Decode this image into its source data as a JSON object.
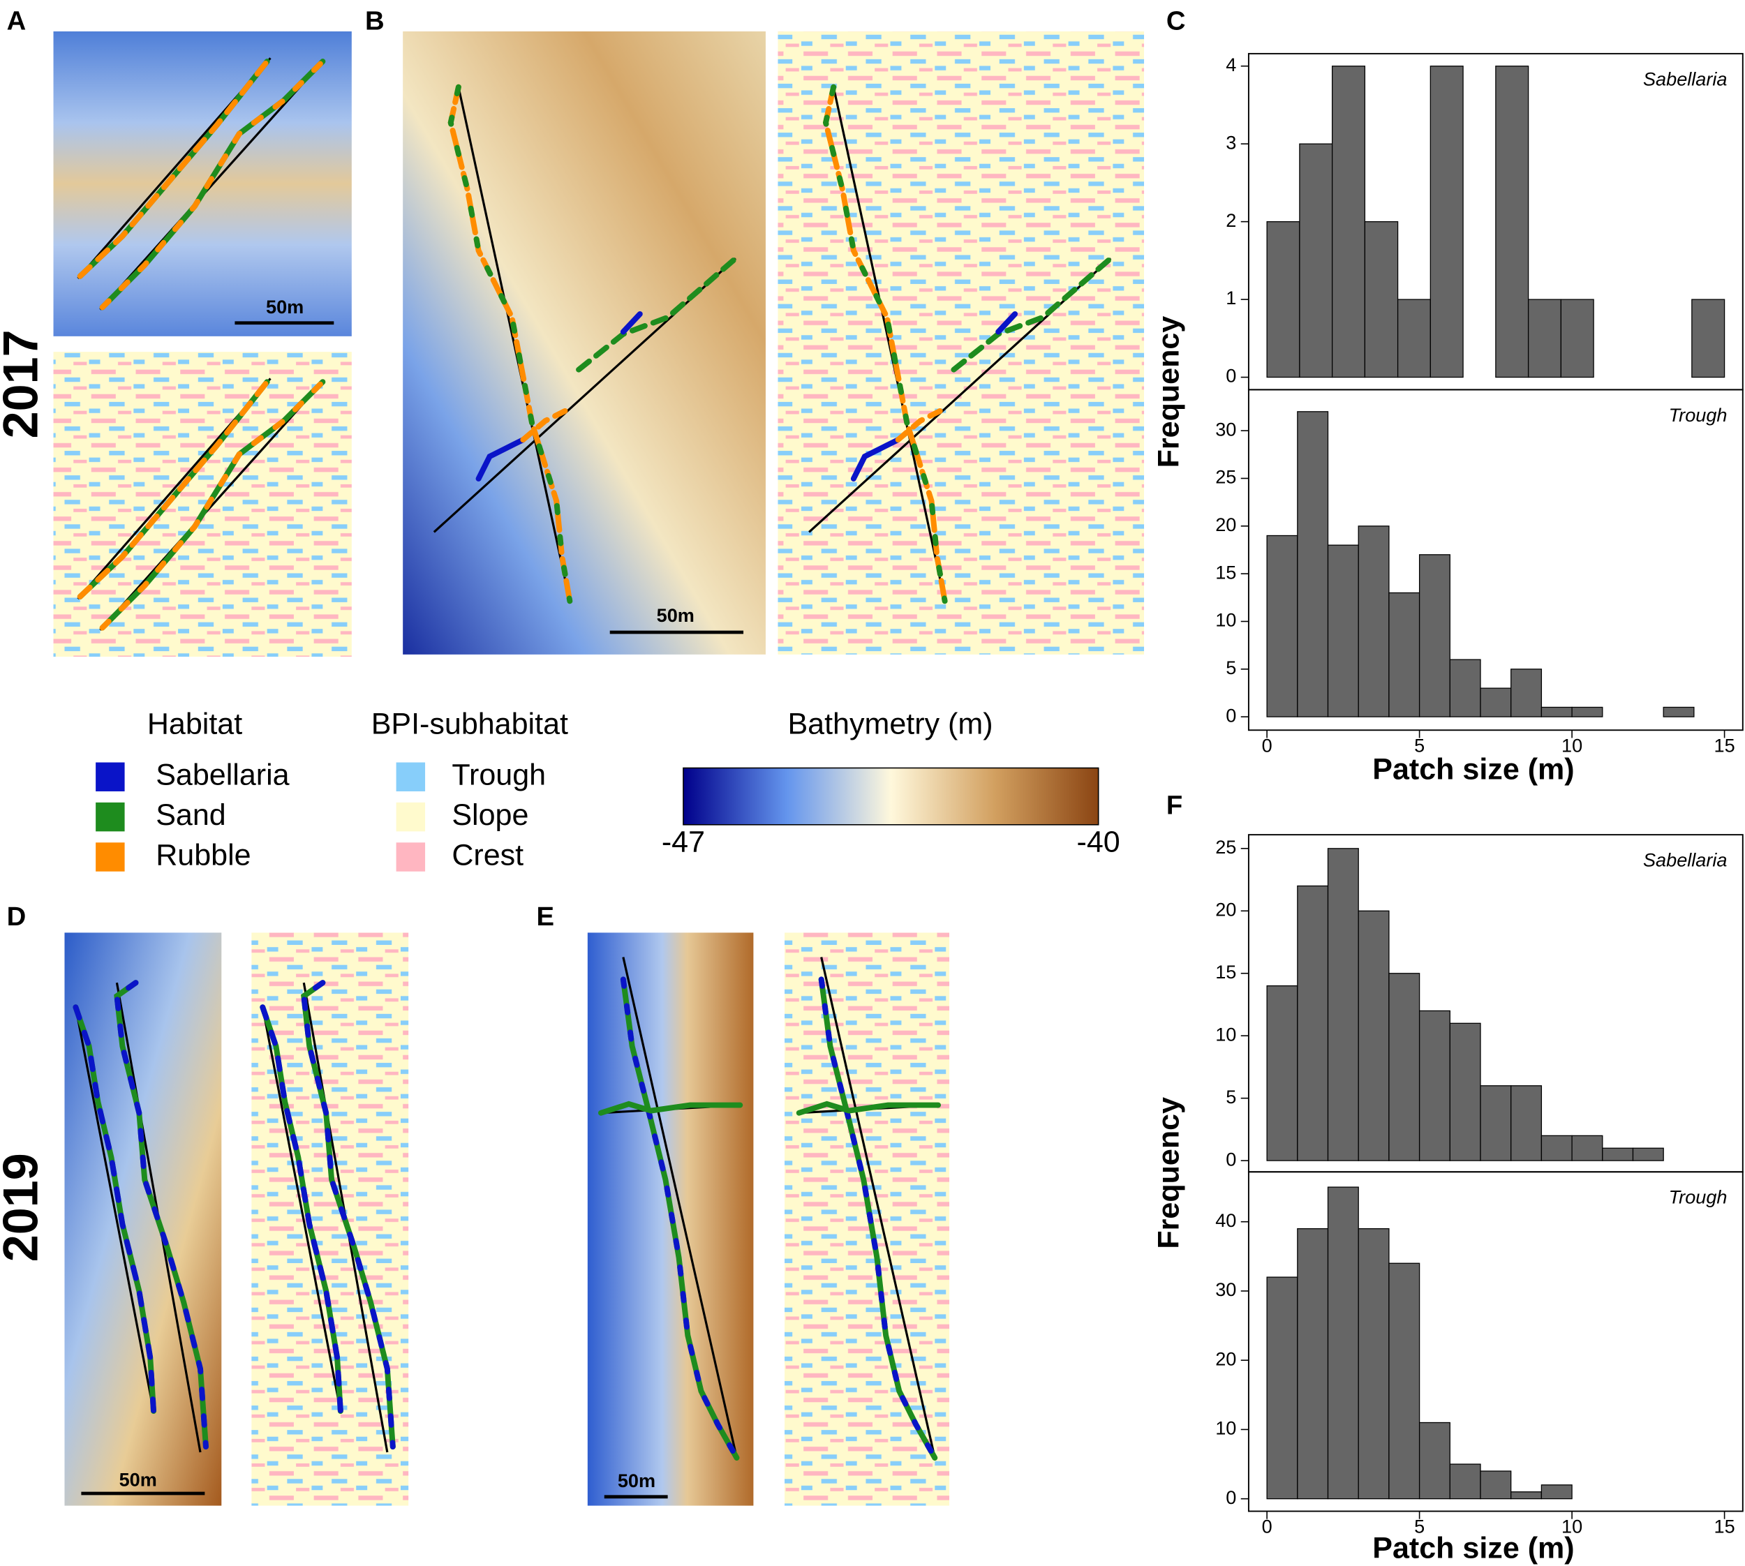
{
  "panels": {
    "A": "A",
    "B": "B",
    "C": "C",
    "D": "D",
    "E": "E",
    "F": "F"
  },
  "years": [
    "2017",
    "2019"
  ],
  "scale_bars": [
    "50m",
    "50m",
    "50m",
    "50m"
  ],
  "legend": {
    "habitat": {
      "title": "Habitat",
      "items": [
        {
          "label": "Sabellaria",
          "color": "#0a14c8"
        },
        {
          "label": "Sand",
          "color": "#1e8c1e"
        },
        {
          "label": "Rubble",
          "color": "#ff8c00"
        }
      ]
    },
    "bpi": {
      "title": "BPI-subhabitat",
      "items": [
        {
          "label": "Trough",
          "color": "#87cefa"
        },
        {
          "label": "Slope",
          "color": "#fffacd"
        },
        {
          "label": "Crest",
          "color": "#ffb6c1"
        }
      ]
    },
    "bathymetry": {
      "title": "Bathymetry (m)",
      "min": -47,
      "max": -40,
      "colors": [
        "#00008b",
        "#6495ed",
        "#fff8dc",
        "#d2a060",
        "#8b4513"
      ]
    }
  },
  "hist_panels": [
    {
      "y_label": "Frequency",
      "x_label": "Patch size (m)"
    },
    {
      "y_label": "Frequency",
      "x_label": "Patch size (m)"
    }
  ],
  "chart_data": [
    {
      "type": "histogram",
      "title": "Sabellaria",
      "color": "#666666",
      "bins": [
        0,
        1.07,
        2.14,
        3.21,
        4.29,
        5.36,
        6.43,
        7.5,
        8.57,
        9.64,
        10.71,
        11.79,
        12.86,
        13.93,
        15
      ],
      "values": [
        2,
        3,
        4,
        2,
        1,
        4,
        0,
        4,
        1,
        1,
        0,
        0,
        0,
        1
      ],
      "xlim": [
        -0.6,
        15.6
      ],
      "ylim": [
        -0.16,
        4.16
      ],
      "yticks": [
        0,
        1,
        2,
        3,
        4
      ]
    },
    {
      "type": "histogram",
      "title": "Trough",
      "color": "#666666",
      "bins": [
        0,
        1,
        2,
        3,
        4,
        5,
        6,
        7,
        8,
        9,
        10,
        11,
        12,
        13,
        14
      ],
      "values": [
        19,
        32,
        18,
        20,
        13,
        17,
        6,
        3,
        5,
        1,
        1,
        0,
        0,
        1
      ],
      "xlim": [
        -0.6,
        15.6
      ],
      "ylim": [
        -1.4,
        34.3
      ],
      "yticks": [
        0,
        5,
        10,
        15,
        20,
        25,
        30
      ],
      "xticks": [
        0,
        5,
        10,
        15
      ]
    },
    {
      "type": "histogram",
      "title": "Sabellaria",
      "color": "#666666",
      "bins": [
        0,
        1,
        2,
        3,
        4,
        5,
        6,
        7,
        8,
        9,
        10,
        11,
        12,
        13
      ],
      "values": [
        14,
        22,
        25,
        20,
        15,
        12,
        11,
        6,
        6,
        2,
        2,
        1,
        1
      ],
      "xlim": [
        -0.6,
        15.6
      ],
      "ylim": [
        -0.9,
        26.1
      ],
      "yticks": [
        0,
        5,
        10,
        15,
        20,
        25
      ]
    },
    {
      "type": "histogram",
      "title": "Trough",
      "color": "#666666",
      "bins": [
        0,
        1,
        2,
        3,
        4,
        5,
        6,
        7,
        8,
        9,
        10
      ],
      "values": [
        32,
        39,
        45,
        39,
        34,
        11,
        5,
        4,
        1,
        2
      ],
      "xlim": [
        -0.6,
        15.6
      ],
      "ylim": [
        -1.8,
        47.2
      ],
      "yticks": [
        0,
        10,
        20,
        30,
        40
      ],
      "xticks": [
        0,
        5,
        10,
        15
      ]
    }
  ]
}
